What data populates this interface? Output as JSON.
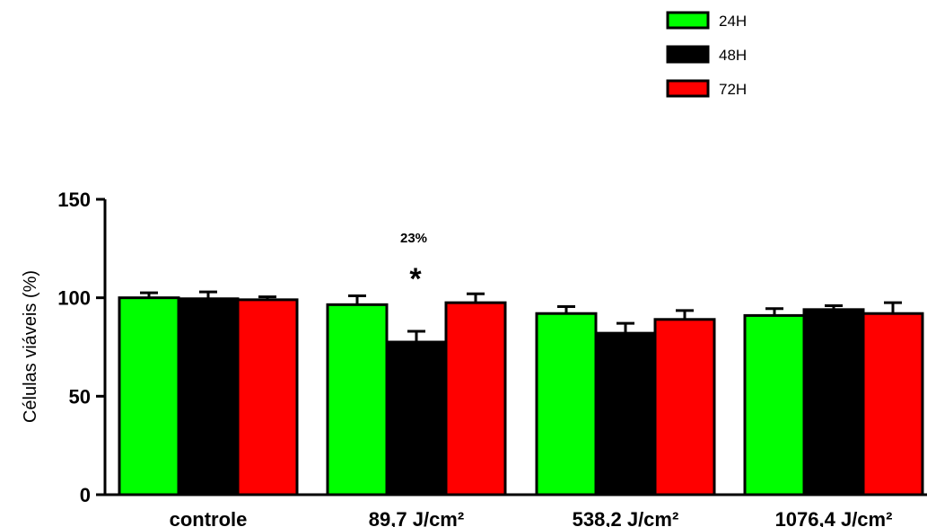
{
  "chart_data": {
    "type": "bar",
    "categories": [
      "controle",
      "89,7 J/cm²",
      "538,2 J/cm²",
      "1076,4 J/cm²"
    ],
    "series": [
      {
        "name": "24H",
        "color": "#00ff00",
        "values": [
          100,
          96.5,
          92,
          91
        ],
        "errors": [
          2.5,
          4.5,
          3.5,
          3.5
        ]
      },
      {
        "name": "48H",
        "color": "#000000",
        "values": [
          99.5,
          77.5,
          82,
          94
        ],
        "errors": [
          3.5,
          5.5,
          5,
          2
        ]
      },
      {
        "name": "72H",
        "color": "#ff0000",
        "values": [
          99,
          97.5,
          89,
          92
        ],
        "errors": [
          1.5,
          4.5,
          4.5,
          5.5
        ]
      }
    ],
    "ylabel": "Células viáveis (%)",
    "xlabel": "",
    "ylim": [
      0,
      150
    ],
    "yticks": [
      "0",
      "50",
      "100",
      "150"
    ],
    "legend_position": "top-right",
    "grid": false,
    "annotations": [
      {
        "category_index": 1,
        "series_index": 1,
        "percent_text": "23%",
        "marker": "*"
      }
    ]
  }
}
